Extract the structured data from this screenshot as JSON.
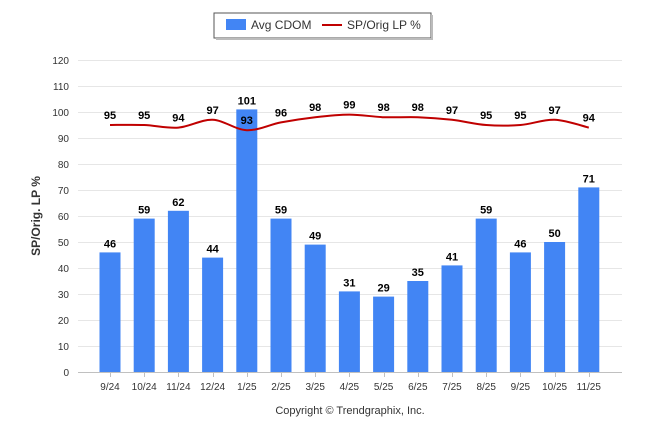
{
  "chart_data": {
    "type": "bar",
    "categories": [
      "9/24",
      "10/24",
      "11/24",
      "12/24",
      "1/25",
      "2/25",
      "3/25",
      "4/25",
      "5/25",
      "6/25",
      "7/25",
      "8/25",
      "9/25",
      "10/25",
      "11/25"
    ],
    "series": [
      {
        "name": "Avg CDOM",
        "type": "bar",
        "color": "#4285f4",
        "values": [
          46,
          59,
          62,
          44,
          101,
          59,
          49,
          31,
          29,
          35,
          41,
          59,
          46,
          50,
          71
        ]
      },
      {
        "name": "SP/Orig LP %",
        "type": "line",
        "color": "#c00000",
        "values": [
          95,
          95,
          94,
          97,
          93,
          96,
          98,
          99,
          98,
          98,
          97,
          95,
          95,
          97,
          94
        ]
      }
    ],
    "ylabel": "SP/Orig. LP %",
    "xlabel": "",
    "ylim": [
      0,
      120
    ],
    "yticks": [
      0,
      10,
      20,
      30,
      40,
      50,
      60,
      70,
      80,
      90,
      100,
      110,
      120
    ],
    "grid": true,
    "legend": "top-center"
  },
  "footer": {
    "copyright": "Copyright © Trendgraphix, Inc."
  }
}
